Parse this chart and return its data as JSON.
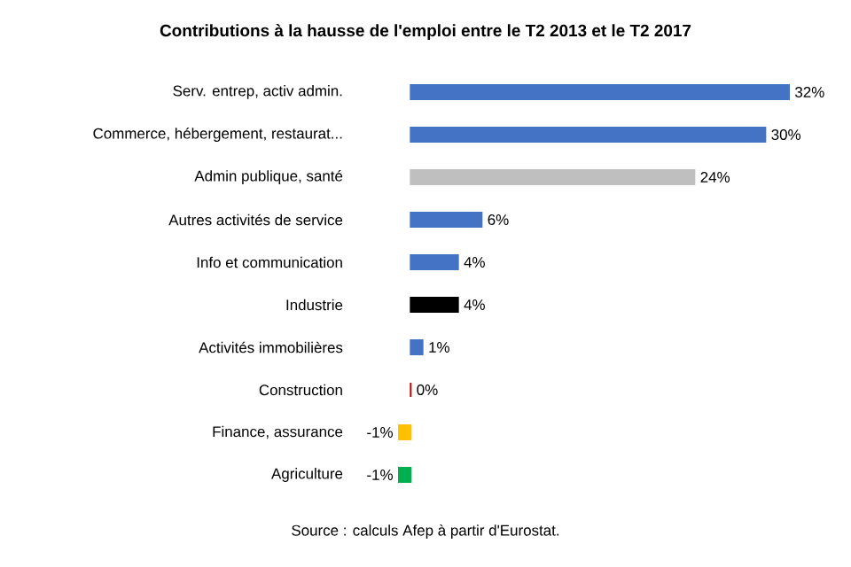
{
  "chart_data": {
    "type": "bar",
    "orientation": "horizontal",
    "title": "Contributions à la hausse de l'emploi entre le T2 2013 et le T2 2017",
    "categories": [
      "Serv. entrep, activ admin.",
      "Commerce, hébergement, restaurat...",
      "Admin publique, santé",
      "Autres activités de service",
      "Info et communication",
      "Industrie",
      "Activités immobilières",
      "Construction",
      "Finance, assurance",
      "Agriculture"
    ],
    "values": [
      32,
      30,
      24,
      6,
      4,
      4,
      1,
      0,
      -1,
      -1
    ],
    "colors": [
      "#4472c4",
      "#4472c4",
      "#bfbfbf",
      "#4472c4",
      "#4472c4",
      "#000000",
      "#4472c4",
      "#c00000",
      "#ffc000",
      "#00b050"
    ],
    "value_labels": [
      "32%",
      "30%",
      "24%",
      "6%",
      "4%",
      "4%",
      "1%",
      "0%",
      "-1%",
      "-1%"
    ],
    "annotations": [
      "Source : calculs Afep à partir d'Eurostat."
    ]
  }
}
